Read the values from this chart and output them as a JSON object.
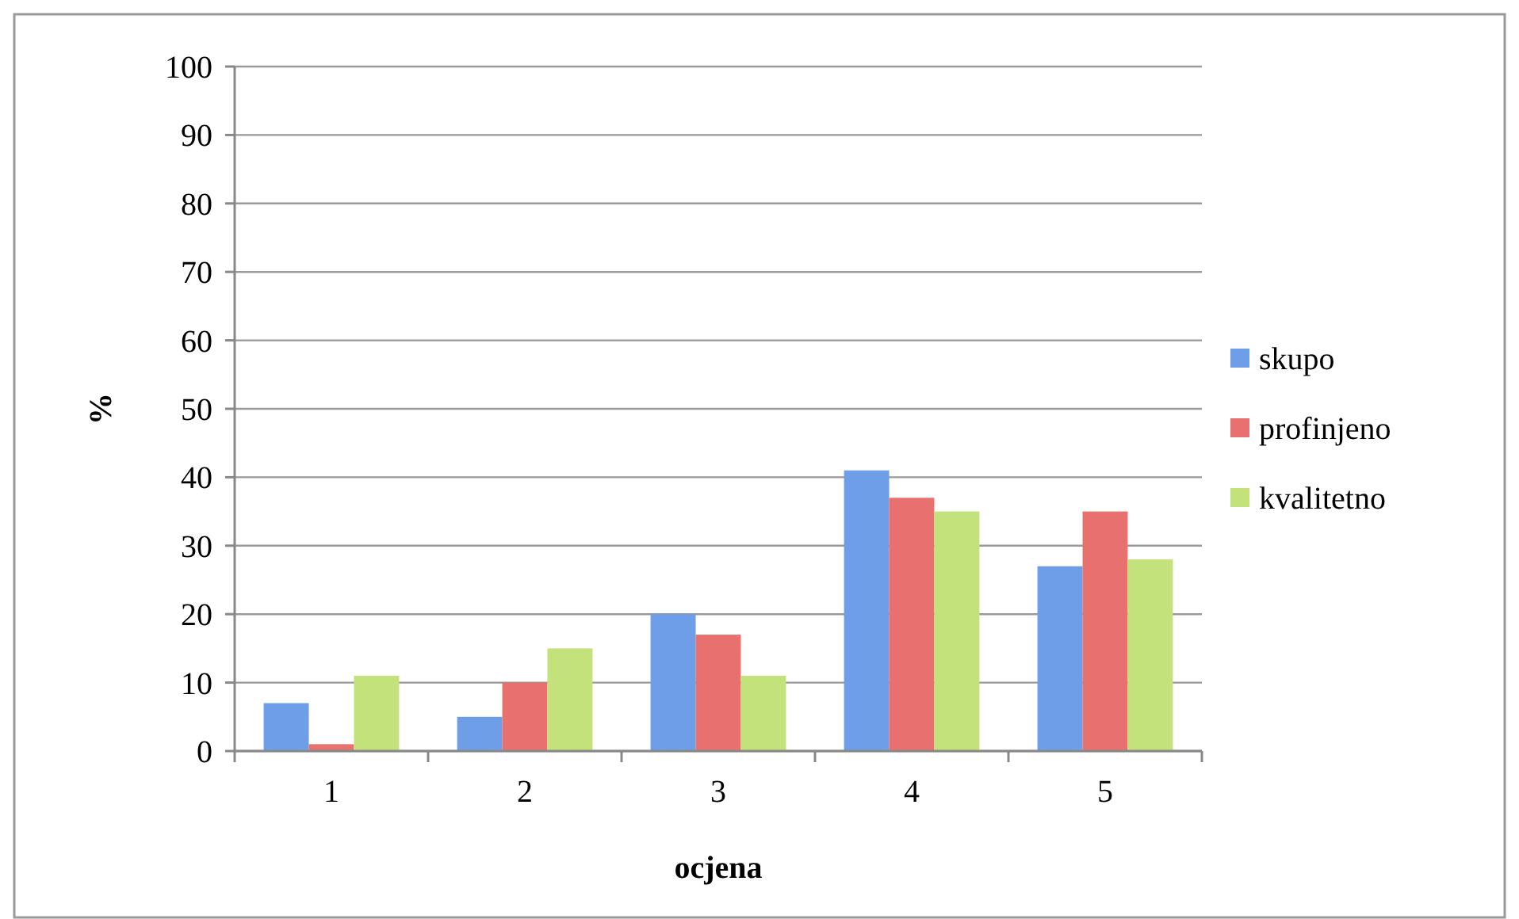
{
  "chart_data": {
    "type": "bar",
    "xlabel": "ocjena",
    "ylabel": "%",
    "categories": [
      "1",
      "2",
      "3",
      "4",
      "5"
    ],
    "series": [
      {
        "name": "skupo",
        "color": "#6f9ee8",
        "values": [
          7,
          5,
          20,
          41,
          27
        ]
      },
      {
        "name": "profinjeno",
        "color": "#e8706e",
        "values": [
          1,
          10,
          17,
          37,
          35
        ]
      },
      {
        "name": "kvalitetno",
        "color": "#c3e27c",
        "values": [
          11,
          15,
          11,
          35,
          28
        ]
      }
    ],
    "ylim": [
      0,
      100
    ],
    "yticks": [
      0,
      10,
      20,
      30,
      40,
      50,
      60,
      70,
      80,
      90,
      100
    ],
    "grid": "y",
    "legend": "right"
  }
}
